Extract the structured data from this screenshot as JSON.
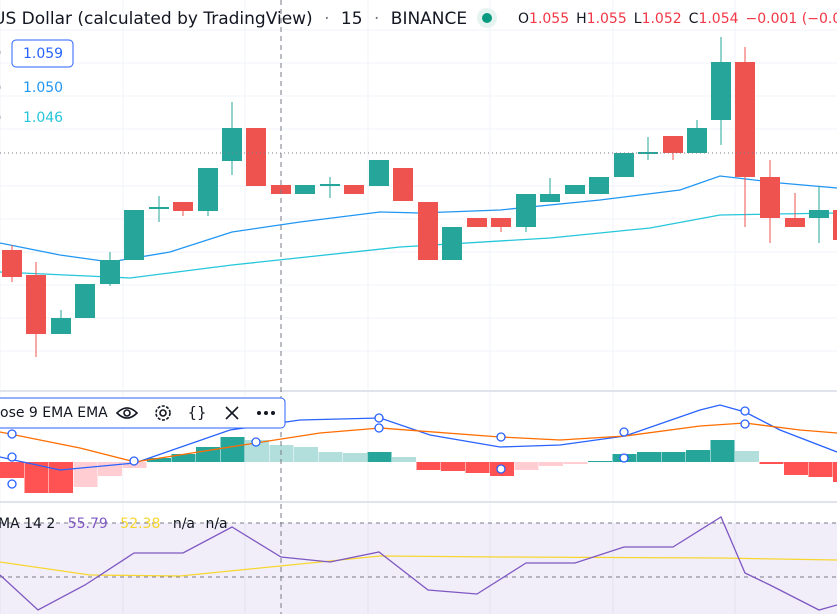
{
  "header": {
    "symbol": "US Dollar (calculated by TradingView)",
    "separator": "·",
    "interval": "15",
    "exchange": "BINANCE",
    "ohlc": [
      {
        "label": "O",
        "value": "1.055"
      },
      {
        "label": "H",
        "value": "1.055"
      },
      {
        "label": "L",
        "value": "1.052"
      },
      {
        "label": "C",
        "value": "1.054"
      }
    ],
    "change": "−0.001 (−0.0"
  },
  "price_labels": [
    "1.059",
    "1.050",
    "1.046"
  ],
  "macd_legend": {
    "title": "ose 9 EMA EMA"
  },
  "rsi_legend": {
    "title": "MA 14 2",
    "values": [
      "55.79",
      "52.38",
      "n/a",
      "n/a"
    ]
  }
}
